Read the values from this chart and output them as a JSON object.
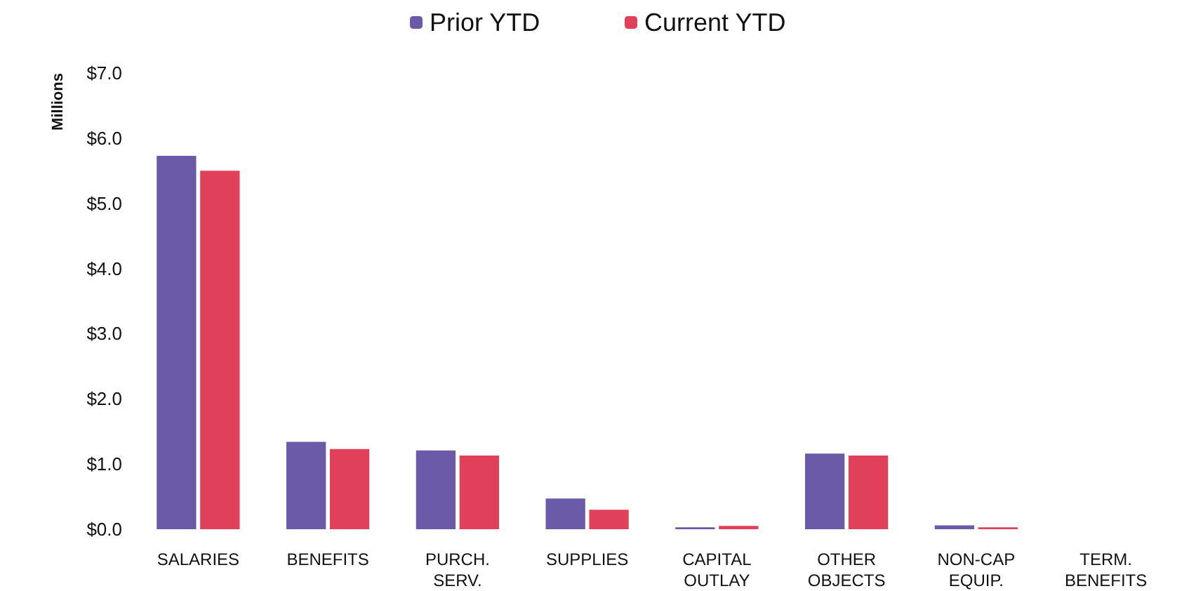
{
  "chart_data": {
    "type": "bar",
    "ylabel": "Millions",
    "categories": [
      "SALARIES",
      "BENEFITS",
      "PURCH.\nSERV.",
      "SUPPLIES",
      "CAPITAL\nOUTLAY",
      "OTHER\nOBJECTS",
      "NON-CAP\nEQUIP.",
      "TERM.\nBENEFITS"
    ],
    "series": [
      {
        "name": "Prior YTD",
        "color": "#6a5aa8",
        "values": [
          5.73,
          1.34,
          1.21,
          0.47,
          0.03,
          1.16,
          0.06,
          0
        ]
      },
      {
        "name": "Current YTD",
        "color": "#e0405a",
        "values": [
          5.5,
          1.23,
          1.13,
          0.3,
          0.05,
          1.13,
          0.03,
          0
        ]
      }
    ],
    "ylim": [
      0,
      7
    ],
    "yticks": [
      {
        "value": 0,
        "label": "$0.0"
      },
      {
        "value": 1,
        "label": "$1.0"
      },
      {
        "value": 2,
        "label": "$2.0"
      },
      {
        "value": 3,
        "label": "$3.0"
      },
      {
        "value": 4,
        "label": "$4.0"
      },
      {
        "value": 5,
        "label": "$5.0"
      },
      {
        "value": 6,
        "label": "$6.0"
      },
      {
        "value": 7,
        "label": "$7.0"
      }
    ],
    "grid": false,
    "legend": "top"
  }
}
